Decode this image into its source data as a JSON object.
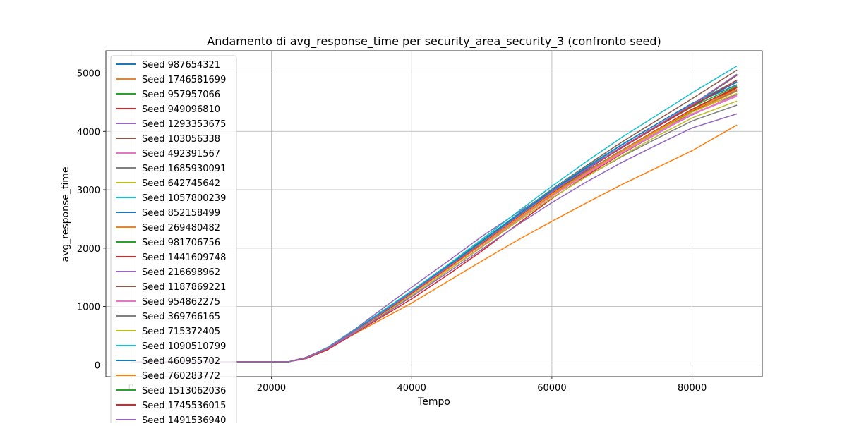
{
  "chart_data": {
    "type": "line",
    "title": "Andamento di avg_response_time per security_area_security_3 (confronto seed)",
    "xlabel": "Tempo",
    "ylabel": "avg_response_time",
    "xlim": [
      -3600,
      90000
    ],
    "ylim": [
      -200,
      5380
    ],
    "xticks": [
      0,
      20000,
      40000,
      60000,
      80000
    ],
    "xtick_labels": [
      "0",
      "20000",
      "40000",
      "60000",
      "80000"
    ],
    "yticks": [
      0,
      1000,
      2000,
      3000,
      4000,
      5000
    ],
    "ytick_labels": [
      "0",
      "1000",
      "2000",
      "3000",
      "4000",
      "5000"
    ],
    "grid": true,
    "legend_position": "top-left",
    "x": [
      0,
      22500,
      25000,
      28000,
      32000,
      36000,
      40000,
      45000,
      50000,
      55000,
      60000,
      65000,
      70000,
      75000,
      80000,
      86400
    ],
    "series": [
      {
        "name": "Seed 987654321",
        "color": "#1f77b4",
        "values": [
          50,
          55,
          130,
          290,
          600,
          920,
          1250,
          1680,
          2120,
          2560,
          2980,
          3370,
          3740,
          4080,
          4430,
          4850
        ]
      },
      {
        "name": "Seed 1746581699",
        "color": "#ff7f0e",
        "values": [
          50,
          55,
          120,
          270,
          540,
          800,
          1060,
          1420,
          1780,
          2130,
          2460,
          2780,
          3090,
          3380,
          3670,
          4110
        ]
      },
      {
        "name": "Seed 957957066",
        "color": "#2ca02c",
        "values": [
          50,
          55,
          130,
          290,
          590,
          900,
          1230,
          1650,
          2080,
          2510,
          2940,
          3320,
          3680,
          4010,
          4350,
          4720
        ]
      },
      {
        "name": "Seed 949096810",
        "color": "#d62728",
        "values": [
          50,
          55,
          110,
          260,
          550,
          840,
          1130,
          1530,
          1950,
          2400,
          2850,
          3250,
          3620,
          3960,
          4330,
          4750
        ]
      },
      {
        "name": "Seed 1293353675",
        "color": "#9467bd",
        "values": [
          50,
          55,
          130,
          300,
          620,
          980,
          1330,
          1760,
          2200,
          2600,
          2980,
          3330,
          3660,
          3970,
          4280,
          4640
        ]
      },
      {
        "name": "Seed 103056338",
        "color": "#8c564b",
        "values": [
          50,
          55,
          130,
          290,
          600,
          920,
          1250,
          1680,
          2120,
          2570,
          3010,
          3420,
          3820,
          4190,
          4560,
          5050
        ]
      },
      {
        "name": "Seed 492391567",
        "color": "#e377c2",
        "values": [
          50,
          55,
          130,
          290,
          580,
          880,
          1190,
          1600,
          2030,
          2470,
          2900,
          3290,
          3650,
          3980,
          4300,
          4620
        ]
      },
      {
        "name": "Seed 1685930091",
        "color": "#7f7f7f",
        "values": [
          50,
          55,
          130,
          290,
          580,
          880,
          1190,
          1600,
          2020,
          2450,
          2860,
          3230,
          3570,
          3880,
          4180,
          4450
        ]
      },
      {
        "name": "Seed 642745642",
        "color": "#bcbd22",
        "values": [
          50,
          55,
          130,
          290,
          580,
          880,
          1190,
          1600,
          2020,
          2450,
          2860,
          3230,
          3580,
          3920,
          4230,
          4520
        ]
      },
      {
        "name": "Seed 1057800239",
        "color": "#17becf",
        "values": [
          50,
          55,
          130,
          300,
          610,
          940,
          1270,
          1700,
          2150,
          2610,
          3060,
          3490,
          3900,
          4280,
          4660,
          5120
        ]
      },
      {
        "name": "Seed 852158499",
        "color": "#1f77b4",
        "values": [
          50,
          55,
          130,
          290,
          600,
          910,
          1240,
          1670,
          2100,
          2540,
          2960,
          3360,
          3740,
          4100,
          4460,
          4800
        ]
      },
      {
        "name": "Seed 269480482",
        "color": "#ff7f0e",
        "values": [
          50,
          55,
          130,
          290,
          590,
          900,
          1220,
          1640,
          2070,
          2510,
          2930,
          3310,
          3670,
          4000,
          4330,
          4690
        ]
      },
      {
        "name": "Seed 981706756",
        "color": "#2ca02c",
        "values": [
          50,
          55,
          130,
          290,
          590,
          900,
          1220,
          1640,
          2070,
          2500,
          2920,
          3310,
          3680,
          4020,
          4370,
          4760
        ]
      },
      {
        "name": "Seed 1441609748",
        "color": "#d62728",
        "values": [
          50,
          55,
          130,
          290,
          590,
          900,
          1220,
          1640,
          2070,
          2500,
          2920,
          3310,
          3680,
          4030,
          4380,
          4760
        ]
      },
      {
        "name": "Seed 216698962",
        "color": "#9467bd",
        "values": [
          50,
          55,
          120,
          280,
          560,
          860,
          1170,
          1570,
          1980,
          2390,
          2780,
          3140,
          3470,
          3770,
          4060,
          4300
        ]
      },
      {
        "name": "Seed 1187869221",
        "color": "#8c564b",
        "values": [
          50,
          55,
          130,
          290,
          590,
          900,
          1230,
          1650,
          2080,
          2520,
          2950,
          3350,
          3730,
          4090,
          4450,
          4960
        ]
      },
      {
        "name": "Seed 954862275",
        "color": "#e377c2",
        "values": [
          50,
          55,
          130,
          290,
          590,
          900,
          1220,
          1630,
          2060,
          2480,
          2890,
          3270,
          3630,
          3960,
          4290,
          4600
        ]
      },
      {
        "name": "Seed 369766165",
        "color": "#7f7f7f",
        "values": [
          50,
          55,
          130,
          290,
          590,
          900,
          1220,
          1640,
          2070,
          2500,
          2920,
          3310,
          3680,
          4020,
          4360,
          4700
        ]
      },
      {
        "name": "Seed 715372405",
        "color": "#bcbd22",
        "values": [
          50,
          55,
          130,
          290,
          590,
          900,
          1220,
          1640,
          2070,
          2500,
          2920,
          3300,
          3660,
          4000,
          4330,
          4650
        ]
      },
      {
        "name": "Seed 1090510799",
        "color": "#17becf",
        "values": [
          50,
          55,
          130,
          300,
          610,
          930,
          1260,
          1690,
          2130,
          2570,
          3000,
          3400,
          3780,
          4130,
          4480,
          4870
        ]
      },
      {
        "name": "Seed 460955702",
        "color": "#1f77b4",
        "values": [
          50,
          55,
          130,
          290,
          600,
          920,
          1250,
          1680,
          2120,
          2560,
          2990,
          3390,
          3770,
          4130,
          4480,
          4840
        ]
      },
      {
        "name": "Seed 760283772",
        "color": "#ff7f0e",
        "values": [
          50,
          55,
          130,
          290,
          590,
          900,
          1220,
          1630,
          2060,
          2490,
          2910,
          3300,
          3670,
          4020,
          4360,
          4720
        ]
      },
      {
        "name": "Seed 1513062036",
        "color": "#2ca02c",
        "values": [
          50,
          55,
          130,
          290,
          590,
          910,
          1240,
          1660,
          2100,
          2530,
          2960,
          3350,
          3730,
          4080,
          4420,
          4780
        ]
      },
      {
        "name": "Seed 1745536015",
        "color": "#d62728",
        "values": [
          50,
          55,
          130,
          290,
          590,
          900,
          1230,
          1650,
          2080,
          2520,
          2950,
          3350,
          3720,
          4080,
          4430,
          4880
        ]
      },
      {
        "name": "Seed 1491536940",
        "color": "#9467bd",
        "values": [
          50,
          55,
          130,
          290,
          590,
          910,
          1240,
          1660,
          2090,
          2530,
          2960,
          3360,
          3740,
          4100,
          4460,
          4980
        ]
      }
    ]
  }
}
